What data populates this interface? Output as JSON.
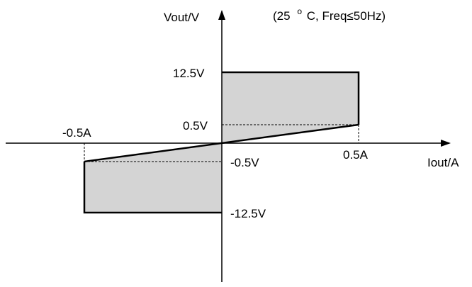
{
  "axes": {
    "x_label": "Iout/A",
    "y_label": "Vout/V"
  },
  "condition": {
    "prefix": "(25",
    "degree_sign": "o",
    "suffix": "C, Freq≤50Hz)"
  },
  "ticks": {
    "x_positive": "0.5A",
    "x_negative": "-0.5A",
    "y_top": "12.5V",
    "y_knee_positive": "0.5V",
    "y_knee_negative": "-0.5V",
    "y_bottom": "-12.5V"
  },
  "colors": {
    "region_fill": "#d4d4d4",
    "line": "#000000"
  }
}
